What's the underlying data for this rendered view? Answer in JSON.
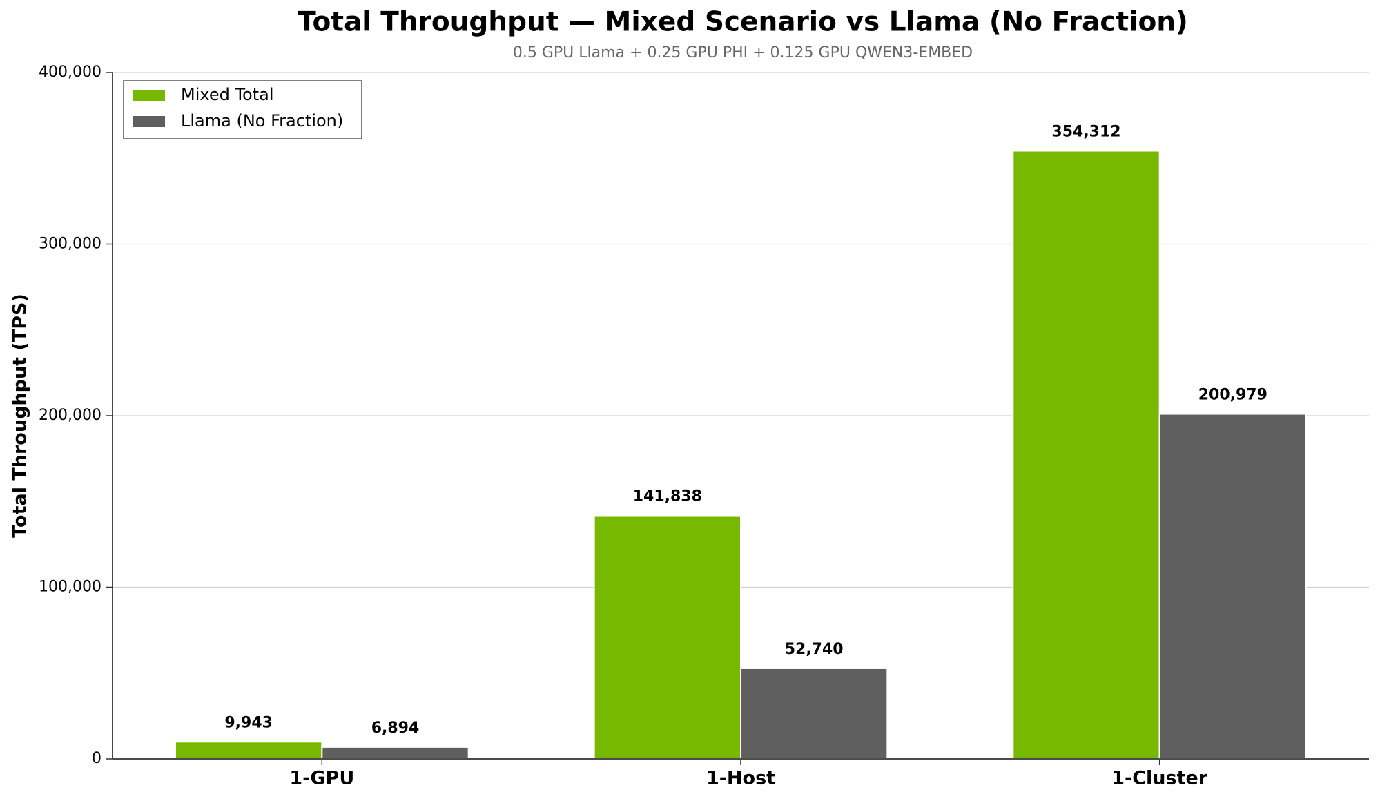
{
  "chart_data": {
    "type": "bar",
    "title": "Total Throughput — Mixed Scenario vs Llama (No Fraction)",
    "subtitle": "0.5 GPU Llama + 0.25 GPU PHI + 0.125 GPU QWEN3-EMBED",
    "y_label": "Total Throughput (TPS)",
    "categories": [
      "1-GPU",
      "1-Host",
      "1-Cluster"
    ],
    "series": [
      {
        "name": "Mixed Total",
        "color": "#76b900",
        "values": [
          9943,
          141838,
          354312
        ],
        "value_labels": [
          "9,943",
          "141,838",
          "354,312"
        ]
      },
      {
        "name": "Llama (No Fraction)",
        "color": "#5f5f5f",
        "values": [
          6894,
          52740,
          200979
        ],
        "value_labels": [
          "6,894",
          "52,740",
          "200,979"
        ]
      }
    ],
    "ylim": [
      0,
      400000
    ],
    "yticks": [
      0,
      {
        "value": 100000,
        "label": "100,000"
      },
      {
        "value": 200000,
        "label": "200,000"
      },
      {
        "value": 300000,
        "label": "300,000"
      },
      {
        "value": 400000,
        "label": "400,000"
      }
    ],
    "grid": true,
    "legend": "upper left"
  }
}
